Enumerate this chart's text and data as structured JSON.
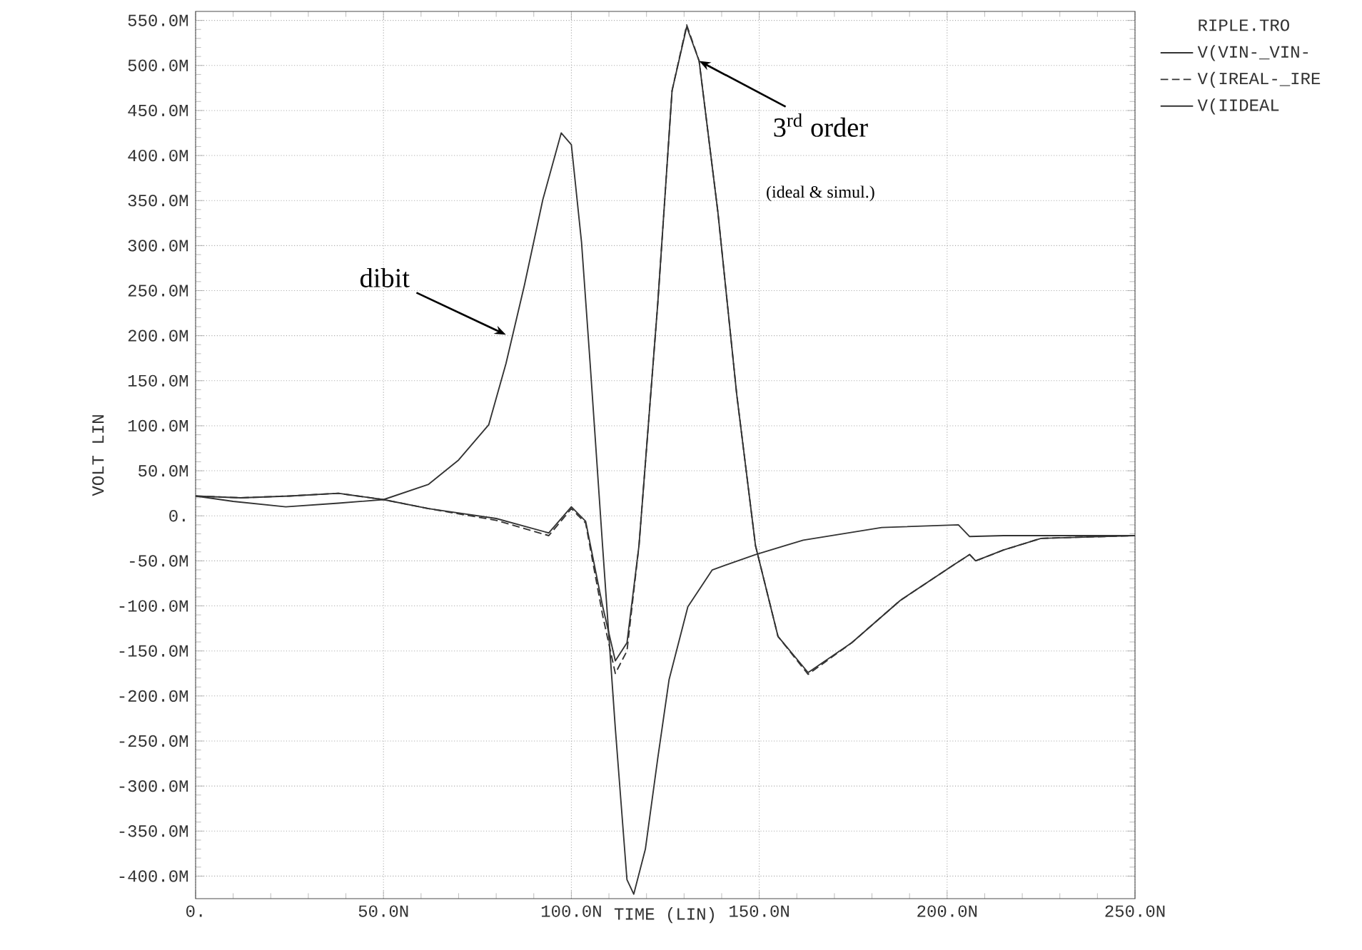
{
  "chart_data": {
    "type": "line",
    "xlabel": "TIME (LIN)",
    "ylabel": "VOLT LIN",
    "legend_title": "RIPLE.TRO",
    "xlim": [
      0,
      250
    ],
    "ylim": [
      -425,
      560
    ],
    "xticks": [
      {
        "value": 0,
        "label": "0."
      },
      {
        "value": 50,
        "label": "50.0N"
      },
      {
        "value": 100,
        "label": "100.0N"
      },
      {
        "value": 150,
        "label": "150.0N"
      },
      {
        "value": 200,
        "label": "200.0N"
      },
      {
        "value": 250,
        "label": "250.0N"
      }
    ],
    "yticks": [
      {
        "value": -400,
        "label": "-400.0M"
      },
      {
        "value": -350,
        "label": "-350.0M"
      },
      {
        "value": -300,
        "label": "-300.0M"
      },
      {
        "value": -250,
        "label": "-250.0M"
      },
      {
        "value": -200,
        "label": "-200.0M"
      },
      {
        "value": -150,
        "label": "-150.0M"
      },
      {
        "value": -100,
        "label": "-100.0M"
      },
      {
        "value": -50,
        "label": "-50.0M"
      },
      {
        "value": 0,
        "label": "0."
      },
      {
        "value": 50,
        "label": "50.0M"
      },
      {
        "value": 100,
        "label": "100.0M"
      },
      {
        "value": 150,
        "label": "150.0M"
      },
      {
        "value": 200,
        "label": "200.0M"
      },
      {
        "value": 250,
        "label": "250.0M"
      },
      {
        "value": 300,
        "label": "300.0M"
      },
      {
        "value": 350,
        "label": "350.0M"
      },
      {
        "value": 400,
        "label": "400.0M"
      },
      {
        "value": 450,
        "label": "450.0M"
      },
      {
        "value": 500,
        "label": "500.0M"
      },
      {
        "value": 550,
        "label": "550.0M"
      }
    ],
    "grid": true,
    "legend": "top right",
    "series": [
      {
        "name": "V(VIN-_VIN-",
        "color": "#333333",
        "line_style": "solid",
        "x": [
          0,
          10,
          24,
          38,
          50,
          62,
          70,
          78,
          82.6,
          87.5,
          92.4,
          97.3,
          100,
          102.7,
          105,
          108.3,
          111.7,
          114.8,
          116.6,
          119.7,
          123,
          126,
          131,
          137.5,
          149,
          161.7,
          182.6,
          203,
          206,
          215,
          250
        ],
        "values": [
          22,
          16,
          10,
          14,
          18,
          35,
          62,
          101,
          169,
          256,
          351,
          425,
          412,
          304,
          169,
          -33,
          -236,
          -404,
          -420,
          -370,
          -269,
          -182,
          -101,
          -60,
          -43,
          -27,
          -13,
          -10,
          -23,
          -22,
          -22
        ]
      },
      {
        "name": "V(IREAL-_IRE",
        "color": "#333333",
        "line_style": "dashed",
        "x": [
          0,
          12,
          25,
          38,
          50,
          62,
          80,
          94,
          100,
          103.8,
          108.3,
          111.7,
          114.8,
          118,
          123,
          126.8,
          130.7,
          134,
          139,
          144,
          149,
          155,
          163,
          174.6,
          187.5,
          201.9,
          206,
          207.6,
          215,
          225,
          250
        ],
        "values": [
          22,
          20,
          22,
          25,
          18,
          8,
          -5,
          -22,
          8,
          -8,
          -110,
          -175,
          -150,
          -33,
          236,
          472,
          545,
          505,
          337,
          135,
          -33,
          -134,
          -176,
          -141,
          -94,
          -54,
          -43,
          -50,
          -38,
          -25,
          -22
        ]
      },
      {
        "name": "V(IIDEAL",
        "color": "#333333",
        "line_style": "solid",
        "x": [
          0,
          12,
          25,
          38,
          50,
          62,
          80,
          94,
          100,
          103.8,
          108.3,
          111.7,
          114.8,
          118,
          123,
          126.8,
          130.7,
          134,
          139,
          144,
          149,
          155,
          163,
          174.6,
          187.5,
          201.9,
          206,
          207.6,
          215,
          225,
          250
        ],
        "values": [
          22,
          20,
          22,
          25,
          18,
          8,
          -3,
          -19,
          10,
          -6,
          -100,
          -161,
          -141,
          -33,
          236,
          472,
          543,
          505,
          337,
          135,
          -33,
          -134,
          -174,
          -141,
          -94,
          -54,
          -43,
          -50,
          -38,
          -25,
          -22
        ]
      }
    ],
    "annotations": [
      {
        "text": "dibit",
        "x": 82.6,
        "y": 201
      },
      {
        "text": "3$^{rd}$ order",
        "x": 134,
        "y": 505
      },
      "(ideal & simul.)"
    ]
  }
}
